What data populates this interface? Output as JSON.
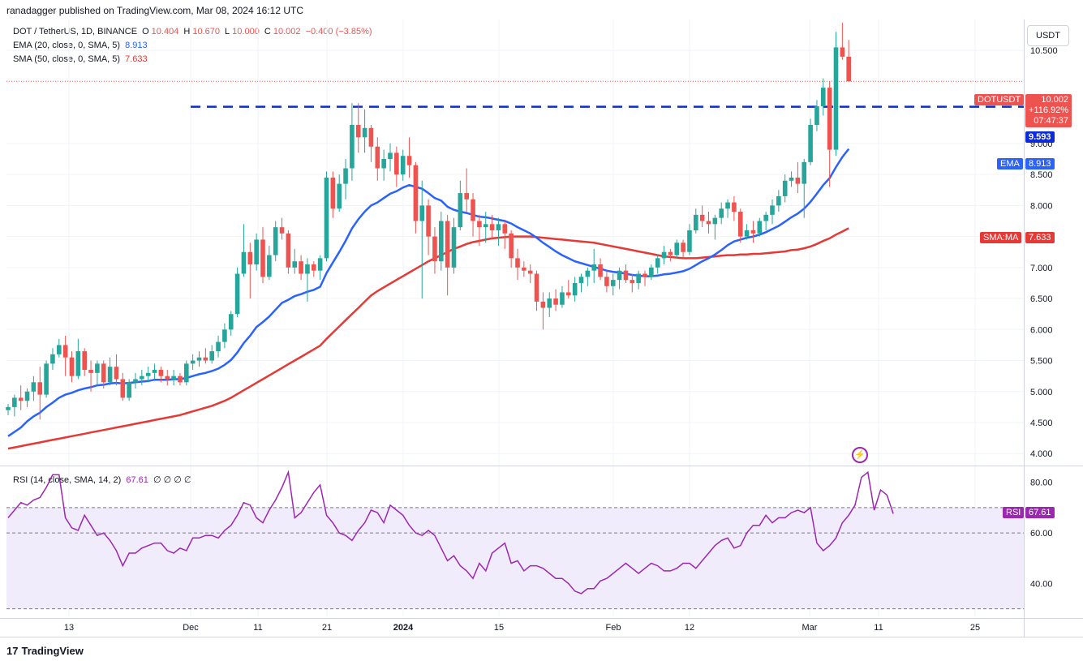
{
  "publisher": "ranadagger published on TradingView.com, Mar 08, 2024 16:12 UTC",
  "legend": {
    "symbol": "DOT / TetherUS, 1D, BINANCE",
    "o_label": "O",
    "o": "10.404",
    "h_label": "H",
    "h": "10.670",
    "l_label": "L",
    "l": "10.000",
    "c_label": "C",
    "c": "10.002",
    "change": "−0.400 (−3.85%)",
    "ema_label": "EMA (20, close, 0, SMA, 5)",
    "ema_value": "8.913",
    "sma_label": "SMA (50, close, 0, SMA, 5)",
    "sma_value": "7.633",
    "rsi_label": "RSI (14, close, SMA, 14, 2)",
    "rsi_value": "67.61",
    "rsi_extra": "∅ ∅ ∅ ∅"
  },
  "currency_button": "USDT",
  "price_tags": {
    "symbol": "DOTUSDT",
    "price": "10.002",
    "pct": "+116.92%",
    "countdown": "07:47:37",
    "level": "9.593",
    "ema_label": "EMA",
    "ema": "8.913",
    "sma_label": "SMA:MA",
    "sma": "7.633",
    "rsi_label": "RSI",
    "rsi": "67.61"
  },
  "branding": "TradingView",
  "colors": {
    "up": "#26a69a",
    "down": "#ef5350",
    "ema": "#2962ff",
    "sma": "#e53935",
    "rsi": "#9c27b0",
    "level": "#0d2bd8",
    "rsi_band": "#f1ecfb"
  },
  "chart_data": {
    "type": "candlestick",
    "price_axis": {
      "ticks": [
        "4.000",
        "4.500",
        "5.000",
        "5.500",
        "6.000",
        "6.500",
        "7.000",
        "7.500",
        "8.000",
        "8.500",
        "9.000",
        "10.500"
      ],
      "range": [
        3.82,
        11.0
      ]
    },
    "time_axis": {
      "ticks": [
        "13",
        "Dec",
        "11",
        "21",
        "2024",
        "15",
        "Feb",
        "12",
        "Mar",
        "11",
        "25"
      ]
    },
    "horizontal_level": 9.593,
    "candles": {
      "fields": [
        "open",
        "high",
        "low",
        "close"
      ],
      "values": [
        [
          4.7,
          4.8,
          4.62,
          4.75
        ],
        [
          4.75,
          4.95,
          4.6,
          4.9
        ],
        [
          4.9,
          5.1,
          4.7,
          4.85
        ],
        [
          4.85,
          5.05,
          4.75,
          5.0
        ],
        [
          5.0,
          5.25,
          4.85,
          5.15
        ],
        [
          5.15,
          5.4,
          4.55,
          4.95
        ],
        [
          4.95,
          5.5,
          4.9,
          5.45
        ],
        [
          5.45,
          5.7,
          5.35,
          5.6
        ],
        [
          5.6,
          5.85,
          5.55,
          5.75
        ],
        [
          5.75,
          5.9,
          5.25,
          5.55
        ],
        [
          5.55,
          5.65,
          5.15,
          5.25
        ],
        [
          5.25,
          5.85,
          5.2,
          5.65
        ],
        [
          5.65,
          5.7,
          5.25,
          5.35
        ],
        [
          5.35,
          5.5,
          5.0,
          5.3
        ],
        [
          5.3,
          5.5,
          5.1,
          5.45
        ],
        [
          5.45,
          5.5,
          5.05,
          5.15
        ],
        [
          5.15,
          5.55,
          5.1,
          5.4
        ],
        [
          5.4,
          5.6,
          5.1,
          5.2
        ],
        [
          5.2,
          5.3,
          4.85,
          4.9
        ],
        [
          4.9,
          5.2,
          4.85,
          5.15
        ],
        [
          5.15,
          5.3,
          5.05,
          5.2
        ],
        [
          5.2,
          5.35,
          5.1,
          5.25
        ],
        [
          5.25,
          5.4,
          5.15,
          5.3
        ],
        [
          5.3,
          5.45,
          5.2,
          5.35
        ],
        [
          5.35,
          5.4,
          5.15,
          5.25
        ],
        [
          5.25,
          5.35,
          5.1,
          5.2
        ],
        [
          5.2,
          5.35,
          5.1,
          5.25
        ],
        [
          5.25,
          5.3,
          5.1,
          5.15
        ],
        [
          5.15,
          5.5,
          5.1,
          5.45
        ],
        [
          5.45,
          5.6,
          5.35,
          5.5
        ],
        [
          5.5,
          5.65,
          5.4,
          5.55
        ],
        [
          5.55,
          5.7,
          5.45,
          5.5
        ],
        [
          5.5,
          5.75,
          5.45,
          5.65
        ],
        [
          5.65,
          5.9,
          5.55,
          5.8
        ],
        [
          5.8,
          6.1,
          5.7,
          6.0
        ],
        [
          6.0,
          6.3,
          5.9,
          6.25
        ],
        [
          6.25,
          7.0,
          6.2,
          6.9
        ],
        [
          6.9,
          7.7,
          6.85,
          7.25
        ],
        [
          7.25,
          7.4,
          6.5,
          7.05
        ],
        [
          7.05,
          7.55,
          6.95,
          7.45
        ],
        [
          7.45,
          7.65,
          6.75,
          6.85
        ],
        [
          6.85,
          7.35,
          6.8,
          7.2
        ],
        [
          7.2,
          7.75,
          7.1,
          7.65
        ],
        [
          7.65,
          7.8,
          7.45,
          7.55
        ],
        [
          7.55,
          7.6,
          6.9,
          7.0
        ],
        [
          7.0,
          7.3,
          6.9,
          7.1
        ],
        [
          7.1,
          7.2,
          6.8,
          6.9
        ],
        [
          6.9,
          7.15,
          6.45,
          7.05
        ],
        [
          7.05,
          7.1,
          6.85,
          6.95
        ],
        [
          6.95,
          7.2,
          6.8,
          7.15
        ],
        [
          7.15,
          8.55,
          7.1,
          8.45
        ],
        [
          8.45,
          8.55,
          7.8,
          7.95
        ],
        [
          7.95,
          8.5,
          7.9,
          8.35
        ],
        [
          8.35,
          8.75,
          8.1,
          8.6
        ],
        [
          8.6,
          9.65,
          8.4,
          9.3
        ],
        [
          9.3,
          9.65,
          8.85,
          9.1
        ],
        [
          9.1,
          9.55,
          8.85,
          9.25
        ],
        [
          9.25,
          9.3,
          8.7,
          8.95
        ],
        [
          8.95,
          9.1,
          8.4,
          8.6
        ],
        [
          8.6,
          8.9,
          8.4,
          8.75
        ],
        [
          8.75,
          9.0,
          8.55,
          8.85
        ],
        [
          8.85,
          8.95,
          8.3,
          8.5
        ],
        [
          8.5,
          8.9,
          8.4,
          8.8
        ],
        [
          8.8,
          9.1,
          8.45,
          8.65
        ],
        [
          8.65,
          8.7,
          7.55,
          7.75
        ],
        [
          7.75,
          8.4,
          6.5,
          8.0
        ],
        [
          8.0,
          8.1,
          7.2,
          7.5
        ],
        [
          7.5,
          7.65,
          6.9,
          7.1
        ],
        [
          7.1,
          7.9,
          6.95,
          7.75
        ],
        [
          7.75,
          7.85,
          6.55,
          7.0
        ],
        [
          7.0,
          7.8,
          6.9,
          7.65
        ],
        [
          7.65,
          8.4,
          7.6,
          8.2
        ],
        [
          8.2,
          8.6,
          7.9,
          8.1
        ],
        [
          8.1,
          8.2,
          7.5,
          7.75
        ],
        [
          7.75,
          7.85,
          7.35,
          7.65
        ],
        [
          7.65,
          7.9,
          7.4,
          7.7
        ],
        [
          7.7,
          7.85,
          7.45,
          7.6
        ],
        [
          7.6,
          7.8,
          7.35,
          7.7
        ],
        [
          7.7,
          7.75,
          7.3,
          7.55
        ],
        [
          7.55,
          7.6,
          7.0,
          7.15
        ],
        [
          7.15,
          7.3,
          6.8,
          7.0
        ],
        [
          7.0,
          7.1,
          6.85,
          6.95
        ],
        [
          6.95,
          7.05,
          6.75,
          6.9
        ],
        [
          6.9,
          6.95,
          6.3,
          6.45
        ],
        [
          6.45,
          6.6,
          6.0,
          6.35
        ],
        [
          6.35,
          6.6,
          6.2,
          6.5
        ],
        [
          6.5,
          6.65,
          6.3,
          6.4
        ],
        [
          6.4,
          6.7,
          6.35,
          6.6
        ],
        [
          6.6,
          6.8,
          6.5,
          6.55
        ],
        [
          6.55,
          6.85,
          6.45,
          6.75
        ],
        [
          6.75,
          6.9,
          6.6,
          6.85
        ],
        [
          6.85,
          7.0,
          6.7,
          6.95
        ],
        [
          6.95,
          7.3,
          6.75,
          7.05
        ],
        [
          7.05,
          7.15,
          6.8,
          6.85
        ],
        [
          6.85,
          6.95,
          6.6,
          6.7
        ],
        [
          6.7,
          6.9,
          6.55,
          6.8
        ],
        [
          6.8,
          7.0,
          6.65,
          6.95
        ],
        [
          6.95,
          7.05,
          6.75,
          6.8
        ],
        [
          6.8,
          6.9,
          6.6,
          6.75
        ],
        [
          6.75,
          6.95,
          6.65,
          6.9
        ],
        [
          6.9,
          6.95,
          6.7,
          6.85
        ],
        [
          6.85,
          7.05,
          6.8,
          7.0
        ],
        [
          7.0,
          7.2,
          6.9,
          7.15
        ],
        [
          7.15,
          7.35,
          7.05,
          7.25
        ],
        [
          7.25,
          7.3,
          7.1,
          7.2
        ],
        [
          7.2,
          7.45,
          7.15,
          7.4
        ],
        [
          7.4,
          7.45,
          7.15,
          7.25
        ],
        [
          7.25,
          7.7,
          7.2,
          7.6
        ],
        [
          7.6,
          7.95,
          7.55,
          7.85
        ],
        [
          7.85,
          8.0,
          7.65,
          7.75
        ],
        [
          7.75,
          7.9,
          7.55,
          7.7
        ],
        [
          7.7,
          7.85,
          7.45,
          7.8
        ],
        [
          7.8,
          8.05,
          7.7,
          7.95
        ],
        [
          7.95,
          8.1,
          7.8,
          8.05
        ],
        [
          8.05,
          8.15,
          7.75,
          7.9
        ],
        [
          7.9,
          7.95,
          7.4,
          7.5
        ],
        [
          7.5,
          7.7,
          7.45,
          7.6
        ],
        [
          7.6,
          7.75,
          7.4,
          7.55
        ],
        [
          7.55,
          7.8,
          7.5,
          7.75
        ],
        [
          7.75,
          7.9,
          7.6,
          7.85
        ],
        [
          7.85,
          8.1,
          7.7,
          8.0
        ],
        [
          8.0,
          8.25,
          7.9,
          8.15
        ],
        [
          8.15,
          8.5,
          8.05,
          8.4
        ],
        [
          8.4,
          8.55,
          8.3,
          8.45
        ],
        [
          8.45,
          8.7,
          8.2,
          8.35
        ],
        [
          8.35,
          8.75,
          7.8,
          8.7
        ],
        [
          8.7,
          9.4,
          8.65,
          9.3
        ],
        [
          9.3,
          9.7,
          9.2,
          9.6
        ],
        [
          9.6,
          10.05,
          9.45,
          9.9
        ],
        [
          9.9,
          10.0,
          8.3,
          8.9
        ],
        [
          8.9,
          10.8,
          8.8,
          10.55
        ],
        [
          10.55,
          10.95,
          10.35,
          10.4
        ],
        [
          10.4,
          10.67,
          10.0,
          10.002
        ]
      ]
    },
    "ema_20": {
      "name": "EMA (20, close, 0, SMA, 5)",
      "values": [
        4.28,
        4.35,
        4.42,
        4.52,
        4.6,
        4.66,
        4.75,
        4.82,
        4.9,
        4.95,
        4.98,
        5.02,
        5.05,
        5.07,
        5.1,
        5.11,
        5.13,
        5.14,
        5.13,
        5.14,
        5.15,
        5.16,
        5.17,
        5.19,
        5.19,
        5.19,
        5.2,
        5.2,
        5.22,
        5.25,
        5.28,
        5.3,
        5.33,
        5.37,
        5.43,
        5.51,
        5.63,
        5.78,
        5.9,
        6.04,
        6.12,
        6.21,
        6.32,
        6.43,
        6.48,
        6.54,
        6.57,
        6.61,
        6.64,
        6.69,
        6.91,
        7.08,
        7.25,
        7.43,
        7.63,
        7.78,
        7.9,
        8.0,
        8.05,
        8.12,
        8.19,
        8.23,
        8.29,
        8.33,
        8.3,
        8.27,
        8.2,
        8.12,
        8.08,
        7.98,
        7.93,
        7.9,
        7.88,
        7.85,
        7.82,
        7.81,
        7.79,
        7.77,
        7.75,
        7.71,
        7.65,
        7.6,
        7.55,
        7.48,
        7.4,
        7.33,
        7.26,
        7.2,
        7.15,
        7.1,
        7.07,
        7.04,
        7.01,
        6.98,
        6.95,
        6.93,
        6.92,
        6.9,
        6.88,
        6.87,
        6.86,
        6.86,
        6.87,
        6.89,
        6.9,
        6.92,
        6.94,
        6.98,
        7.04,
        7.1,
        7.15,
        7.21,
        7.28,
        7.36,
        7.42,
        7.45,
        7.48,
        7.5,
        7.53,
        7.57,
        7.62,
        7.67,
        7.74,
        7.81,
        7.87,
        7.95,
        8.06,
        8.19,
        8.33,
        8.44,
        8.62,
        8.78,
        8.913
      ]
    },
    "sma_50": {
      "name": "SMA (50, close, 0, SMA, 5)",
      "values": [
        4.08,
        4.1,
        4.12,
        4.14,
        4.16,
        4.18,
        4.2,
        4.22,
        4.24,
        4.26,
        4.28,
        4.3,
        4.32,
        4.34,
        4.36,
        4.38,
        4.4,
        4.42,
        4.44,
        4.46,
        4.48,
        4.5,
        4.52,
        4.54,
        4.56,
        4.58,
        4.6,
        4.62,
        4.65,
        4.68,
        4.71,
        4.74,
        4.77,
        4.81,
        4.85,
        4.9,
        4.96,
        5.02,
        5.08,
        5.14,
        5.2,
        5.26,
        5.32,
        5.38,
        5.44,
        5.5,
        5.56,
        5.62,
        5.68,
        5.74,
        5.85,
        5.95,
        6.05,
        6.15,
        6.25,
        6.35,
        6.45,
        6.55,
        6.62,
        6.68,
        6.74,
        6.8,
        6.86,
        6.92,
        6.98,
        7.04,
        7.1,
        7.15,
        7.2,
        7.25,
        7.3,
        7.34,
        7.38,
        7.41,
        7.43,
        7.45,
        7.47,
        7.48,
        7.49,
        7.5,
        7.5,
        7.5,
        7.5,
        7.49,
        7.48,
        7.47,
        7.46,
        7.45,
        7.44,
        7.43,
        7.42,
        7.41,
        7.4,
        7.38,
        7.36,
        7.34,
        7.32,
        7.3,
        7.28,
        7.26,
        7.24,
        7.22,
        7.2,
        7.18,
        7.17,
        7.16,
        7.15,
        7.15,
        7.15,
        7.16,
        7.17,
        7.18,
        7.19,
        7.2,
        7.2,
        7.21,
        7.21,
        7.22,
        7.22,
        7.23,
        7.24,
        7.25,
        7.26,
        7.28,
        7.29,
        7.31,
        7.34,
        7.38,
        7.43,
        7.47,
        7.53,
        7.58,
        7.633
      ]
    },
    "rsi": {
      "name": "RSI (14, close, SMA, 14, 2)",
      "axis_ticks": [
        "80.00",
        "60.00",
        "40.00"
      ],
      "range": [
        27,
        86
      ],
      "upper_band": 70,
      "middle_band": 60,
      "lower_band": 30,
      "values": [
        66,
        69,
        72,
        71,
        73,
        74,
        78,
        83,
        83,
        66,
        62,
        61,
        67,
        63,
        59,
        60,
        57,
        53,
        47,
        52,
        52,
        54,
        55,
        56,
        56,
        53,
        52,
        54,
        53,
        58,
        58,
        59,
        59,
        58,
        61,
        63,
        67,
        72,
        71,
        66,
        64,
        69,
        73,
        78,
        84,
        66,
        68,
        72,
        76,
        79,
        67,
        64,
        60,
        59,
        57,
        61,
        64,
        69,
        68,
        64,
        71,
        69,
        67,
        63,
        60,
        59,
        61,
        59,
        54,
        49,
        51,
        47,
        45,
        42,
        48,
        45,
        52,
        54,
        56,
        48,
        49,
        45,
        47,
        47,
        46,
        44,
        42,
        42,
        40,
        37,
        36,
        38,
        38,
        41,
        42,
        44,
        46,
        48,
        46,
        44,
        46,
        48,
        47,
        45,
        45,
        46,
        48,
        48,
        46,
        49,
        52,
        55,
        57,
        58,
        54,
        55,
        60,
        63,
        63,
        67,
        64,
        66,
        66,
        68,
        69,
        68,
        70,
        56,
        53,
        55,
        58,
        64,
        67,
        71,
        82,
        84,
        69,
        77,
        75,
        67.61
      ]
    }
  }
}
